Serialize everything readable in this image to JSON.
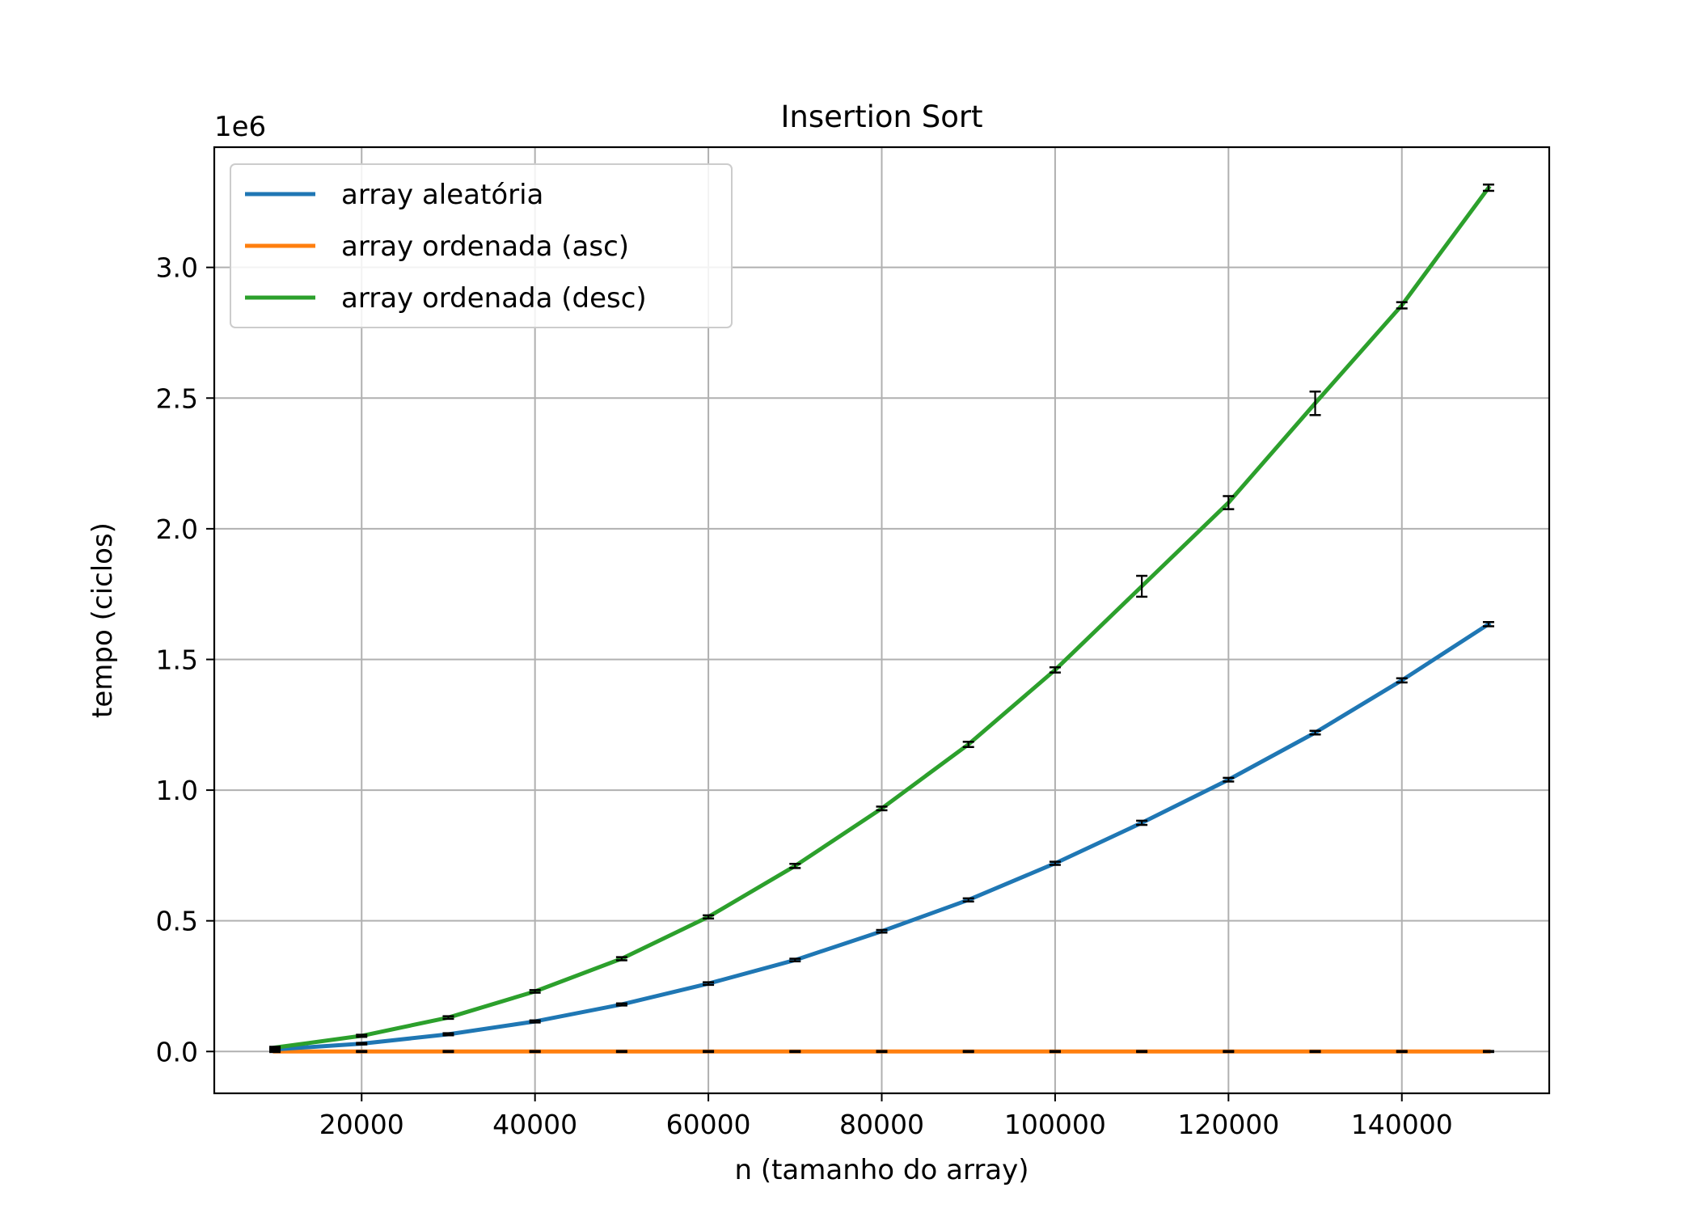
{
  "chart_data": {
    "type": "line",
    "title": "Insertion Sort",
    "xlabel": "n (tamanho do array)",
    "ylabel": "tempo (ciclos)",
    "y_offset_label": "1e6",
    "y_scale_factor": 1000000,
    "xlim": [
      3000,
      157000
    ],
    "ylim": [
      -0.16,
      3.46
    ],
    "xticks": [
      20000,
      40000,
      60000,
      80000,
      100000,
      120000,
      140000
    ],
    "xtick_labels": [
      "20000",
      "40000",
      "60000",
      "80000",
      "100000",
      "120000",
      "140000"
    ],
    "yticks": [
      0.0,
      0.5,
      1.0,
      1.5,
      2.0,
      2.5,
      3.0
    ],
    "ytick_labels": [
      "0.0",
      "0.5",
      "1.0",
      "1.5",
      "2.0",
      "2.5",
      "3.0"
    ],
    "grid": true,
    "legend_position": "top-left",
    "x": [
      10000,
      20000,
      30000,
      40000,
      50000,
      60000,
      70000,
      80000,
      90000,
      100000,
      110000,
      120000,
      130000,
      140000,
      150000
    ],
    "series": [
      {
        "name": "array aleatória",
        "color": "#1f77b4",
        "values": [
          0.008,
          0.03,
          0.066,
          0.115,
          0.18,
          0.26,
          0.35,
          0.46,
          0.58,
          0.72,
          0.875,
          1.04,
          1.22,
          1.42,
          1.635
        ],
        "errors": [
          0.002,
          0.003,
          0.004,
          0.004,
          0.004,
          0.005,
          0.005,
          0.005,
          0.006,
          0.006,
          0.008,
          0.007,
          0.007,
          0.008,
          0.008
        ]
      },
      {
        "name": "array ordenada (asc)",
        "color": "#ff7f0e",
        "values": [
          0.0,
          0.0,
          0.0,
          0.0,
          0.0,
          0.0,
          0.0,
          0.0,
          0.0,
          0.0,
          0.0,
          0.0,
          0.0,
          0.0,
          0.0
        ],
        "errors": [
          0.002,
          0.002,
          0.002,
          0.002,
          0.002,
          0.002,
          0.002,
          0.002,
          0.002,
          0.002,
          0.002,
          0.002,
          0.002,
          0.002,
          0.002
        ]
      },
      {
        "name": "array ordenada (desc)",
        "color": "#2ca02c",
        "values": [
          0.015,
          0.06,
          0.13,
          0.23,
          0.355,
          0.515,
          0.71,
          0.93,
          1.175,
          1.46,
          1.78,
          2.1,
          2.48,
          2.855,
          3.305
        ],
        "errors": [
          0.003,
          0.004,
          0.005,
          0.005,
          0.006,
          0.006,
          0.008,
          0.007,
          0.01,
          0.01,
          0.04,
          0.025,
          0.045,
          0.012,
          0.012
        ]
      }
    ]
  }
}
